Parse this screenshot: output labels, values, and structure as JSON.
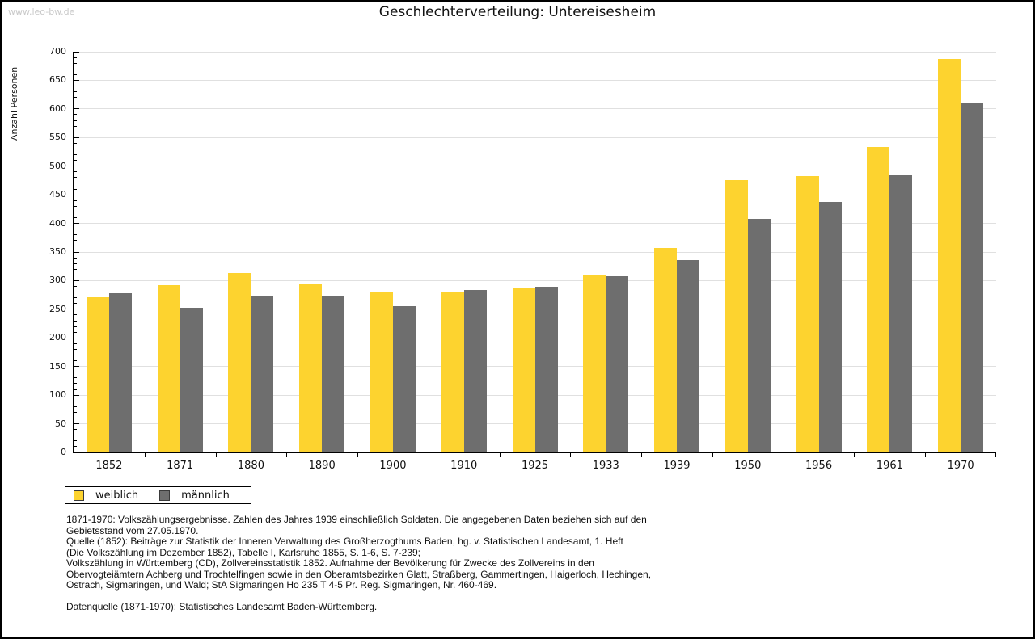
{
  "watermark": "www.leo-bw.de",
  "title": "Geschlechterverteilung: Untereisesheim",
  "chart_data": {
    "type": "bar",
    "title": "Geschlechterverteilung: Untereisesheim",
    "xlabel": "",
    "ylabel": "Anzahl Personen",
    "ylim": [
      0,
      700
    ],
    "ytick_step": 50,
    "minor_tick_step": 10,
    "grid": true,
    "legend_position": "bottom-left",
    "categories": [
      "1852",
      "1871",
      "1880",
      "1890",
      "1900",
      "1910",
      "1925",
      "1933",
      "1939",
      "1950",
      "1956",
      "1961",
      "1970"
    ],
    "series": [
      {
        "name": "weiblich",
        "color": "#fdd32f",
        "values": [
          271,
          292,
          314,
          294,
          281,
          279,
          287,
          311,
          357,
          476,
          483,
          533,
          687
        ]
      },
      {
        "name": "männlich",
        "color": "#6e6e6e",
        "values": [
          278,
          253,
          272,
          272,
          256,
          283,
          289,
          307,
          336,
          408,
          438,
          484,
          609
        ]
      }
    ]
  },
  "legend": {
    "items": [
      {
        "label": "weiblich",
        "color": "#fdd32f"
      },
      {
        "label": "männlich",
        "color": "#6e6e6e"
      }
    ]
  },
  "footnotes": [
    "1871-1970: Volkszählungsergebnisse. Zahlen des Jahres 1939 einschließlich Soldaten. Die angegebenen Daten beziehen sich auf den",
    "Gebietsstand vom 27.05.1970.",
    "Quelle (1852): Beiträge zur Statistik der Inneren Verwaltung des Großherzogthums Baden, hg. v. Statistischen Landesamt, 1. Heft",
    "(Die Volkszählung im Dezember 1852), Tabelle I, Karlsruhe 1855, S. 1-6, S. 7-239;",
    "Volkszählung in Württemberg (CD), Zollvereinsstatistik 1852. Aufnahme der Bevölkerung für Zwecke des Zollvereins in den",
    "Obervogteiämtern Achberg und Trochtelfingen sowie in den Oberamtsbezirken Glatt, Straßberg, Gammertingen, Haigerloch, Hechingen,",
    "Ostrach, Sigmaringen, und Wald; StA Sigmaringen Ho 235 T 4-5 Pr. Reg. Sigmaringen, Nr. 460-469."
  ],
  "datasource": "Datenquelle (1871-1970): Statistisches Landesamt Baden-Württemberg."
}
